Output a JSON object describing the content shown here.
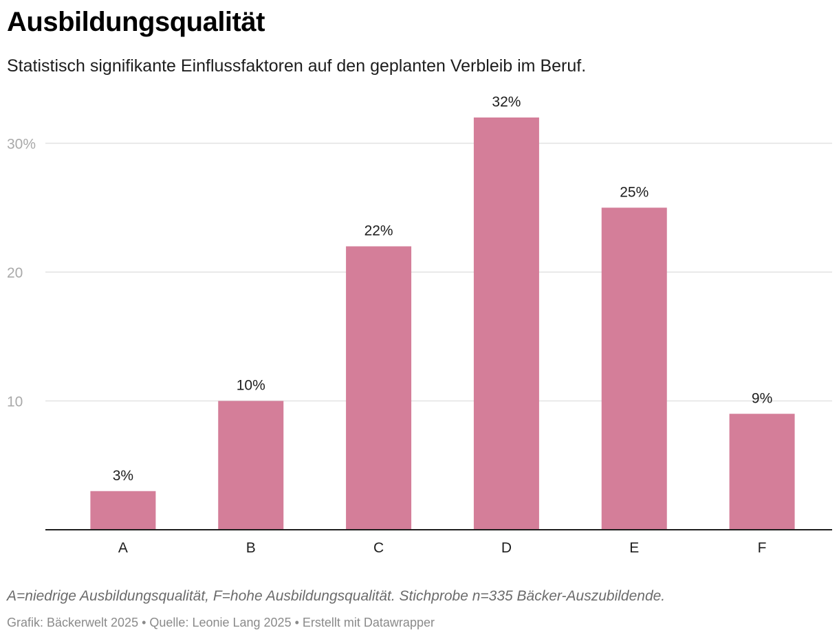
{
  "header": {
    "title": "Ausbildungsqualität",
    "subtitle": "Statistisch signifikante Einflussfaktoren auf den geplanten Verbleib im Beruf."
  },
  "chart_data": {
    "type": "bar",
    "categories": [
      "A",
      "B",
      "C",
      "D",
      "E",
      "F"
    ],
    "values": [
      3,
      10,
      22,
      32,
      25,
      9
    ],
    "value_labels": [
      "3%",
      "10%",
      "22%",
      "32%",
      "25%",
      "9%"
    ],
    "yticks": [
      10,
      20,
      30
    ],
    "ytick_labels": [
      "10",
      "20",
      "30%"
    ],
    "ylim": [
      0,
      32
    ],
    "grid": true,
    "bar_color": "#d47e99",
    "xlabel": "",
    "ylabel": ""
  },
  "footer": {
    "note": "A=niedrige Ausbildungsqualität, F=hohe Ausbildungsqualität. Stichprobe n=335 Bäcker-Auszubildende.",
    "credit_graphic": "Grafik: Bäckerwelt 2025",
    "separator": " • ",
    "credit_source": "Quelle: Leonie Lang 2025",
    "credit_tool": "Erstellt mit Datawrapper"
  }
}
